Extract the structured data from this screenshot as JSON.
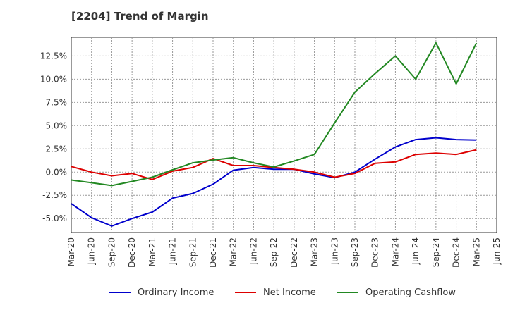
{
  "chart_data": {
    "type": "line",
    "title": "[2204]  Trend of Margin",
    "xlabel": "",
    "ylabel": "",
    "x": [
      "Mar-20",
      "Jun-20",
      "Sep-20",
      "Dec-20",
      "Mar-21",
      "Jun-21",
      "Sep-21",
      "Dec-21",
      "Mar-22",
      "Jun-22",
      "Sep-22",
      "Dec-22",
      "Mar-23",
      "Jun-23",
      "Sep-23",
      "Dec-23",
      "Mar-24",
      "Jun-24",
      "Sep-24",
      "Dec-24",
      "Mar-25",
      "Jun-25"
    ],
    "ylim": [
      -6.5,
      14.5
    ],
    "yticks": [
      -5.0,
      -2.5,
      0.0,
      2.5,
      5.0,
      7.5,
      10.0,
      12.5
    ],
    "ytick_labels": [
      "-5.0%",
      "-2.5%",
      "0.0%",
      "2.5%",
      "5.0%",
      "7.5%",
      "10.0%",
      "12.5%"
    ],
    "grid": true,
    "legend_position": "bottom",
    "series": [
      {
        "name": "Ordinary Income",
        "color": "#0000cc",
        "values": [
          -3.4,
          -4.9,
          -5.8,
          -5.0,
          -4.3,
          -2.8,
          -2.3,
          -1.3,
          0.2,
          0.5,
          0.3,
          0.3,
          -0.2,
          -0.6,
          0.0,
          1.4,
          2.7,
          3.5,
          3.7,
          3.5,
          3.45,
          null
        ]
      },
      {
        "name": "Net Income",
        "color": "#dd0000",
        "values": [
          0.6,
          0.0,
          -0.4,
          -0.15,
          -0.8,
          0.1,
          0.5,
          1.45,
          0.7,
          0.7,
          0.5,
          0.3,
          0.0,
          -0.55,
          -0.15,
          0.95,
          1.1,
          1.9,
          2.05,
          1.9,
          2.4,
          null
        ]
      },
      {
        "name": "Operating Cashflow",
        "color": "#228822",
        "values": [
          -0.85,
          -1.15,
          -1.45,
          -1.0,
          -0.55,
          0.25,
          1.0,
          1.3,
          1.55,
          1.0,
          0.55,
          1.2,
          1.9,
          5.3,
          8.6,
          10.6,
          12.5,
          10.0,
          13.9,
          9.5,
          13.9,
          null
        ]
      }
    ]
  }
}
